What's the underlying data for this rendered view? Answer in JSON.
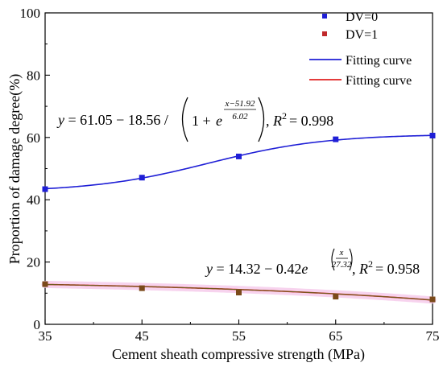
{
  "chart_data": {
    "type": "scatter",
    "xlabel": "Cement sheath compressive strength (MPa)",
    "ylabel": "Proportion of damage degree(%)",
    "xlim": [
      35,
      75
    ],
    "ylim": [
      0,
      100
    ],
    "xticks": [
      "35",
      "45",
      "55",
      "65",
      "75"
    ],
    "yticks": [
      "0",
      "20",
      "40",
      "60",
      "80",
      "100"
    ],
    "grid": false,
    "legend_position": "top-right",
    "x": [
      35,
      45,
      55,
      65,
      75
    ],
    "series": [
      {
        "name": "DV=0",
        "kind": "scatter",
        "color": "#1f1fd6",
        "values": [
          43.4,
          47.1,
          53.9,
          59.4,
          60.6
        ]
      },
      {
        "name": "DV=1",
        "kind": "scatter",
        "color": "#c0292b",
        "values": [
          12.9,
          11.6,
          10.2,
          8.9,
          8.0
        ]
      },
      {
        "name": "Fitting curve",
        "kind": "line",
        "color": "#1f1fd6"
      },
      {
        "name": "Fitting curve",
        "kind": "line",
        "color": "#e02020"
      }
    ],
    "annotations": {
      "eq1": {
        "lhs": "y",
        "eq_sign": "=",
        "c1": "61.05",
        "minus": "−",
        "c2": "18.56",
        "slash": "/",
        "one_plus": "1 +",
        "e": "e",
        "num": "x−51.92",
        "den": "6.02",
        "comma": ",",
        "r": "R",
        "r_exp": "2",
        "r_value": "= 0.998"
      },
      "eq2": {
        "lhs": "y",
        "eq_sign": "=",
        "c1": "14.32",
        "minus": "−",
        "c2": "0.42",
        "e": "e",
        "num": "x",
        "den": "27.32",
        "comma": ",",
        "r": "R",
        "r_exp": "2",
        "r_value": "= 0.958"
      }
    }
  }
}
